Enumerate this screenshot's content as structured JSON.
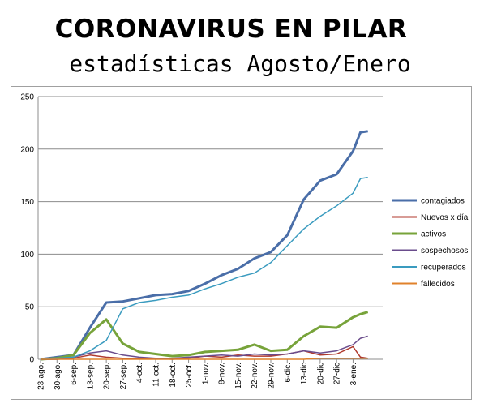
{
  "header": {
    "title": "CORONAVIRUS EN PILAR",
    "subtitle": "estadísticas Agosto/Enero"
  },
  "chart_data": {
    "type": "line",
    "title": "",
    "xlabel": "",
    "ylabel": "",
    "ylim": [
      0,
      250
    ],
    "yticks": [
      0,
      50,
      100,
      150,
      200,
      250
    ],
    "grid": "horizontal",
    "legend": "right",
    "x": [
      "23-ago.",
      "30-ago.",
      "6-sep.",
      "13-sep.",
      "20-sep.",
      "27-sep.",
      "4-oct.",
      "11-oct.",
      "18-oct.",
      "25-oct.",
      "1-nov.",
      "8-nov.",
      "15-nov.",
      "22-nov.",
      "29-nov.",
      "6-dic.",
      "13-dic",
      "20-dic",
      "27-dic",
      "3-ene."
    ],
    "series": [
      {
        "name": "contagiados",
        "color": "#4a6ea8",
        "width": 3,
        "values": [
          0,
          2,
          4,
          30,
          54,
          55,
          58,
          61,
          62,
          65,
          72,
          80,
          86,
          96,
          102,
          118,
          152,
          170,
          176,
          198
        ],
        "last": [
          216,
          217
        ]
      },
      {
        "name": "Nuevos x día",
        "color": "#b03a2e",
        "width": 1.5,
        "values": [
          0,
          0,
          1,
          4,
          2,
          1,
          1,
          1,
          0,
          1,
          3,
          2,
          4,
          3,
          3,
          5,
          8,
          4,
          5,
          12
        ],
        "last": [
          2,
          1
        ]
      },
      {
        "name": "activos",
        "color": "#77a33a",
        "width": 3,
        "values": [
          0,
          1,
          4,
          25,
          38,
          15,
          7,
          5,
          3,
          4,
          7,
          8,
          9,
          14,
          8,
          9,
          22,
          31,
          30,
          40
        ],
        "last": [
          43,
          45
        ]
      },
      {
        "name": "sospechosos",
        "color": "#6a4c8c",
        "width": 1.5,
        "values": [
          0,
          0,
          2,
          6,
          8,
          4,
          2,
          1,
          1,
          2,
          3,
          4,
          3,
          5,
          4,
          5,
          8,
          6,
          8,
          14
        ],
        "last": [
          20,
          22
        ]
      },
      {
        "name": "recuperados",
        "color": "#3a9bbf",
        "width": 1.5,
        "values": [
          0,
          1,
          2,
          8,
          18,
          48,
          54,
          56,
          59,
          61,
          67,
          72,
          78,
          82,
          92,
          108,
          124,
          136,
          146,
          158
        ],
        "last": [
          172,
          173
        ]
      },
      {
        "name": "fallecidos",
        "color": "#e0822b",
        "width": 1.5,
        "values": [
          0,
          0,
          0,
          0,
          0,
          0,
          0,
          0,
          0,
          0,
          0,
          0,
          0,
          0,
          0,
          0,
          0,
          1,
          1,
          1
        ],
        "last": [
          1,
          1
        ]
      }
    ]
  }
}
